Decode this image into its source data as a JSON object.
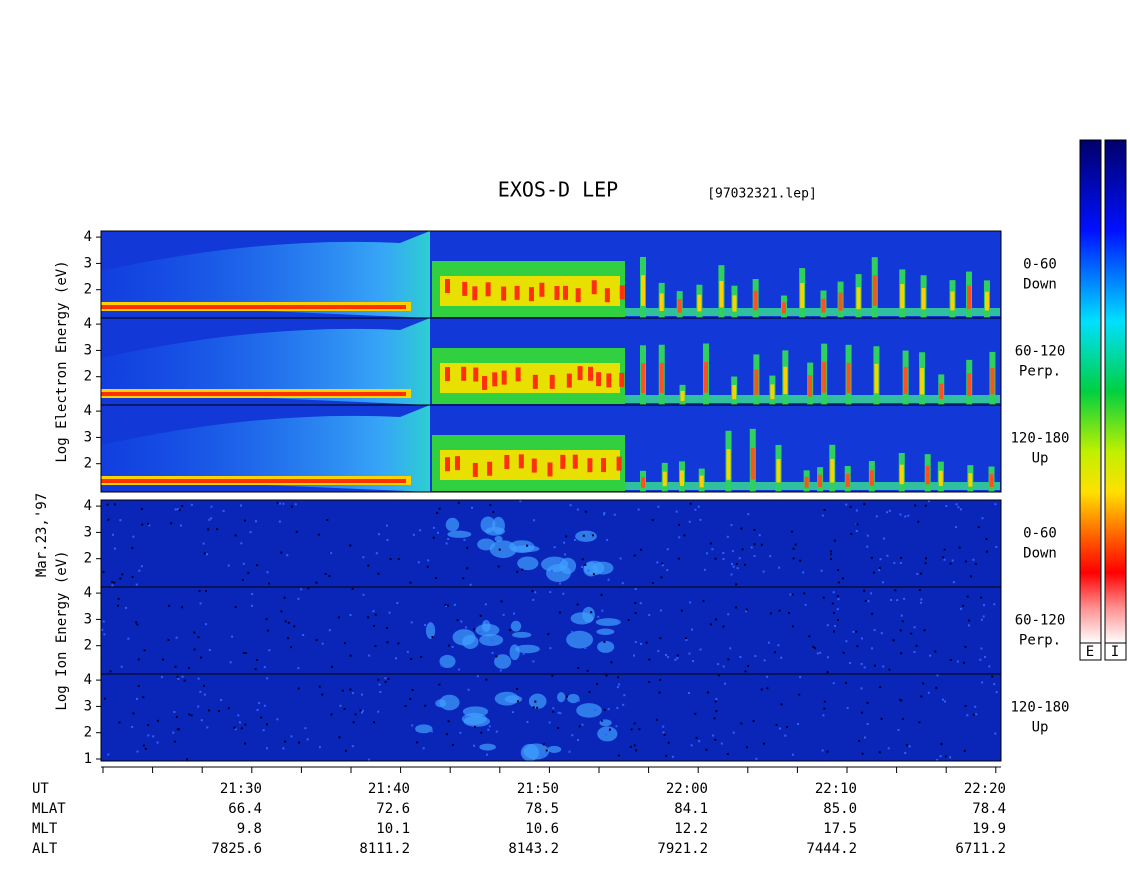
{
  "header": {
    "title": "EXOS-D LEP",
    "file": "[97032321.lep]"
  },
  "date": "Mar.23,'97",
  "groups": [
    {
      "axis_label": "Log  Electron  Energy (eV)",
      "kind": "electron",
      "panels": [
        {
          "pitch": "0-60",
          "direction": "Down",
          "yticks": [
            2,
            3,
            4
          ]
        },
        {
          "pitch": "60-120",
          "direction": "Perp.",
          "yticks": [
            2,
            3,
            4
          ]
        },
        {
          "pitch": "120-180",
          "direction": "Up",
          "yticks": [
            2,
            3,
            4
          ]
        }
      ]
    },
    {
      "axis_label": "Log  Ion  Energy (eV)",
      "kind": "ion",
      "panels": [
        {
          "pitch": "0-60",
          "direction": "Down",
          "yticks": [
            2,
            3,
            4
          ]
        },
        {
          "pitch": "60-120",
          "direction": "Perp.",
          "yticks": [
            2,
            3,
            4
          ]
        },
        {
          "pitch": "120-180",
          "direction": "Up",
          "yticks": [
            1,
            2,
            3,
            4
          ]
        }
      ]
    }
  ],
  "colorbar": {
    "labels": [
      "E",
      "I"
    ]
  },
  "footer": {
    "rows": [
      {
        "label": "UT",
        "values": [
          "21:30",
          "21:40",
          "21:50",
          "22:00",
          "22:10",
          "22:20"
        ]
      },
      {
        "label": "MLAT",
        "values": [
          "66.4",
          "72.6",
          "78.5",
          "84.1",
          "85.0",
          "78.4"
        ]
      },
      {
        "label": "MLT",
        "values": [
          "9.8",
          "10.1",
          "10.6",
          "12.2",
          "17.5",
          "19.9"
        ]
      },
      {
        "label": "ALT",
        "values": [
          "7825.6",
          "8111.2",
          "8143.2",
          "7921.2",
          "7444.2",
          "6711.2"
        ]
      }
    ]
  }
}
